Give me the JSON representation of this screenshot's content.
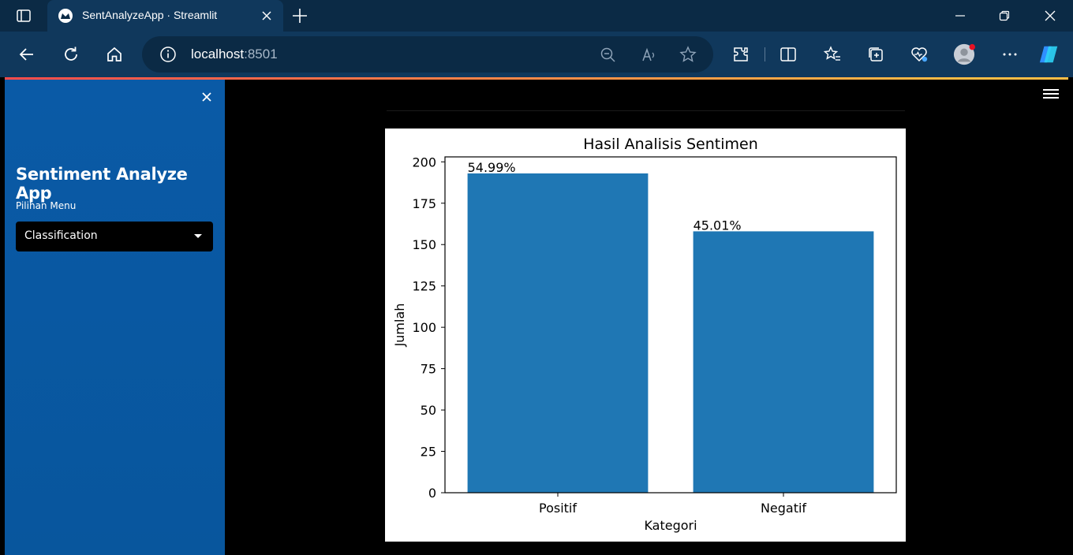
{
  "browser": {
    "tab_title": "SentAnalyzeApp · Streamlit",
    "url_host": "localhost",
    "url_port": ":8501"
  },
  "sidebar": {
    "app_title": "Sentiment Analyze App",
    "menu_label": "Pilihan Menu",
    "menu_selected": "Classification"
  },
  "chart_data": {
    "type": "bar",
    "title": "Hasil Analisis Sentimen",
    "xlabel": "Kategori",
    "ylabel": "Jumlah",
    "categories": [
      "Positif",
      "Negatif"
    ],
    "values": [
      193,
      158
    ],
    "labels": [
      "54.99%",
      "45.01%"
    ],
    "ylim": [
      0,
      203
    ],
    "yticks": [
      0,
      25,
      50,
      75,
      100,
      125,
      150,
      175,
      200
    ],
    "bar_color": "#1f77b4",
    "grid": false
  }
}
